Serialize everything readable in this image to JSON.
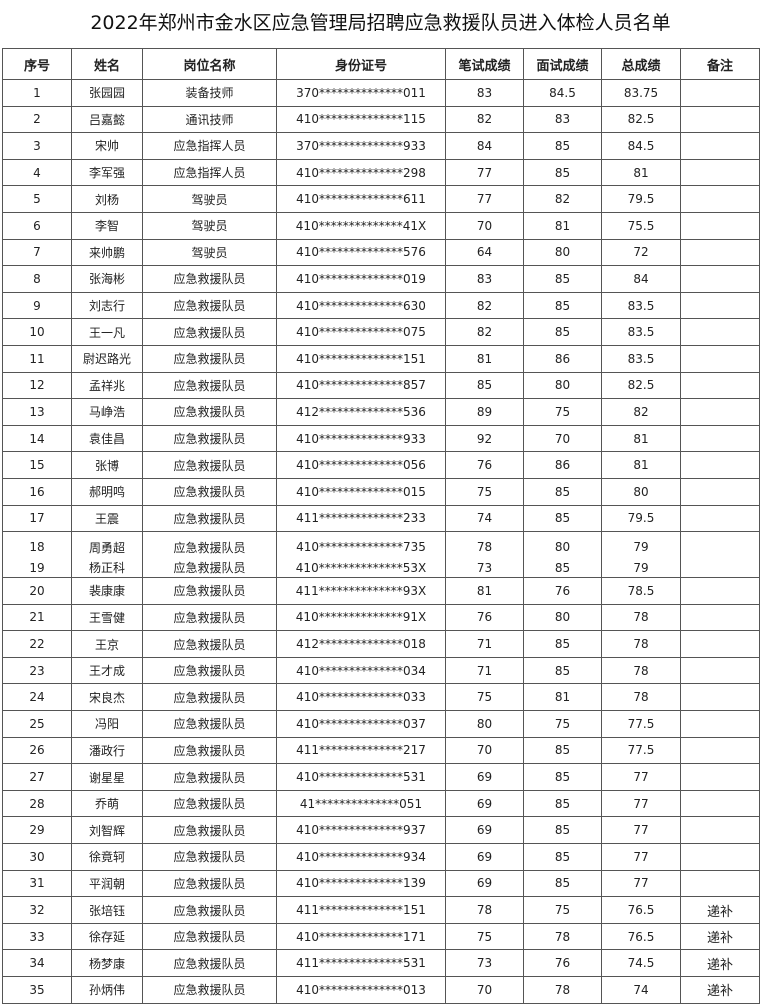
{
  "title": "2022年郑州市金水区应急管理局招聘应急救援队员进入体检人员名单",
  "headers": [
    "序号",
    "姓名",
    "岗位名称",
    "身份证号",
    "笔试成绩",
    "面试成绩",
    "总成绩",
    "备注"
  ],
  "rows": [
    [
      "1",
      "张园园",
      "装备技师",
      "370**************011",
      "83",
      "84.5",
      "83.75",
      ""
    ],
    [
      "2",
      "吕嘉懿",
      "通讯技师",
      "410**************115",
      "82",
      "83",
      "82.5",
      ""
    ],
    [
      "3",
      "宋帅",
      "应急指挥人员",
      "370**************933",
      "84",
      "85",
      "84.5",
      ""
    ],
    [
      "4",
      "李军强",
      "应急指挥人员",
      "410**************298",
      "77",
      "85",
      "81",
      ""
    ],
    [
      "5",
      "刘杨",
      "驾驶员",
      "410**************611",
      "77",
      "82",
      "79.5",
      ""
    ],
    [
      "6",
      "李智",
      "驾驶员",
      "410**************41X",
      "70",
      "81",
      "75.5",
      ""
    ],
    [
      "7",
      "来帅鹏",
      "驾驶员",
      "410**************576",
      "64",
      "80",
      "72",
      ""
    ],
    [
      "8",
      "张海彬",
      "应急救援队员",
      "410**************019",
      "83",
      "85",
      "84",
      ""
    ],
    [
      "9",
      "刘志行",
      "应急救援队员",
      "410**************630",
      "82",
      "85",
      "83.5",
      ""
    ],
    [
      "10",
      "王一凡",
      "应急救援队员",
      "410**************075",
      "82",
      "85",
      "83.5",
      ""
    ],
    [
      "11",
      "尉迟路光",
      "应急救援队员",
      "410**************151",
      "81",
      "86",
      "83.5",
      ""
    ],
    [
      "12",
      "孟祥兆",
      "应急救援队员",
      "410**************857",
      "85",
      "80",
      "82.5",
      ""
    ],
    [
      "13",
      "马峥浩",
      "应急救援队员",
      "412**************536",
      "89",
      "75",
      "82",
      ""
    ],
    [
      "14",
      "袁佳昌",
      "应急救援队员",
      "410**************933",
      "92",
      "70",
      "81",
      ""
    ],
    [
      "15",
      "张博",
      "应急救援队员",
      "410**************056",
      "76",
      "86",
      "81",
      ""
    ],
    [
      "16",
      "郝明鸣",
      "应急救援队员",
      "410**************015",
      "75",
      "85",
      "80",
      ""
    ],
    [
      "17",
      "王震",
      "应急救援队员",
      "411**************233",
      "74",
      "85",
      "79.5",
      ""
    ],
    [
      "18",
      "周勇超",
      "应急救援队员",
      "410**************735",
      "78",
      "80",
      "79",
      ""
    ],
    [
      "19",
      "杨正科",
      "应急救援队员",
      "410**************53X",
      "73",
      "85",
      "79",
      ""
    ],
    [
      "20",
      "裴康康",
      "应急救援队员",
      "411**************93X",
      "81",
      "76",
      "78.5",
      ""
    ],
    [
      "21",
      "王雪健",
      "应急救援队员",
      "410**************91X",
      "76",
      "80",
      "78",
      ""
    ],
    [
      "22",
      "王京",
      "应急救援队员",
      "412**************018",
      "71",
      "85",
      "78",
      ""
    ],
    [
      "23",
      "王才成",
      "应急救援队员",
      "410**************034",
      "71",
      "85",
      "78",
      ""
    ],
    [
      "24",
      "宋良杰",
      "应急救援队员",
      "410**************033",
      "75",
      "81",
      "78",
      ""
    ],
    [
      "25",
      "冯阳",
      "应急救援队员",
      "410**************037",
      "80",
      "75",
      "77.5",
      ""
    ],
    [
      "26",
      "潘政行",
      "应急救援队员",
      "411**************217",
      "70",
      "85",
      "77.5",
      ""
    ],
    [
      "27",
      "谢星星",
      "应急救援队员",
      "410**************531",
      "69",
      "85",
      "77",
      ""
    ],
    [
      "28",
      "乔萌",
      "应急救援队员",
      "41**************051",
      "69",
      "85",
      "77",
      ""
    ],
    [
      "29",
      "刘智辉",
      "应急救援队员",
      "410**************937",
      "69",
      "85",
      "77",
      ""
    ],
    [
      "30",
      "徐竟轲",
      "应急救援队员",
      "410**************934",
      "69",
      "85",
      "77",
      ""
    ],
    [
      "31",
      "平润朝",
      "应急救援队员",
      "410**************139",
      "69",
      "85",
      "77",
      ""
    ],
    [
      "32",
      "张培钰",
      "应急救援队员",
      "411**************151",
      "78",
      "75",
      "76.5",
      "递补"
    ],
    [
      "33",
      "徐存延",
      "应急救援队员",
      "410**************171",
      "75",
      "78",
      "76.5",
      "递补"
    ],
    [
      "34",
      "杨梦康",
      "应急救援队员",
      "411**************531",
      "73",
      "76",
      "74.5",
      "递补"
    ],
    [
      "35",
      "孙炳伟",
      "应急救援队员",
      "410**************013",
      "70",
      "78",
      "74",
      "递补"
    ]
  ]
}
